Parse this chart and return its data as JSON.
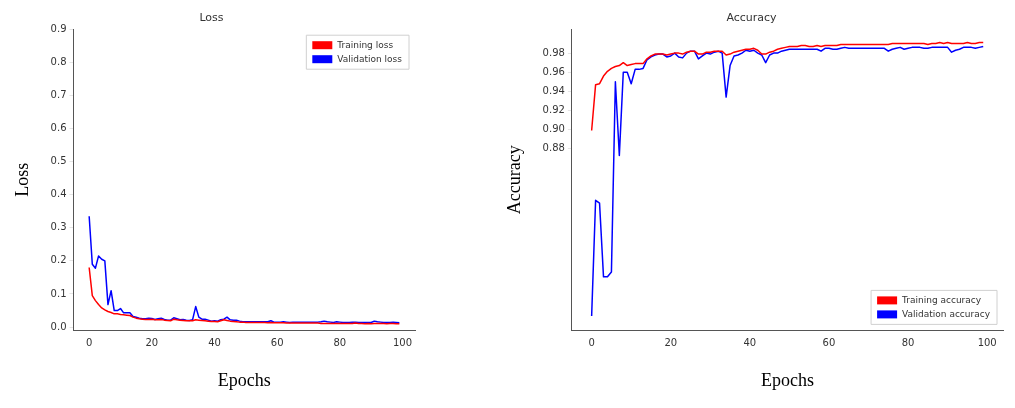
{
  "chart_data": [
    {
      "type": "line",
      "title": "Loss",
      "xlabel": "Epochs",
      "ylabel": "Loss",
      "legend": "top right",
      "x": [
        0,
        1,
        2,
        3,
        4,
        5,
        6,
        7,
        8,
        9,
        10,
        11,
        12,
        13,
        14,
        15,
        16,
        17,
        18,
        19,
        20,
        21,
        22,
        23,
        24,
        25,
        26,
        27,
        28,
        29,
        30,
        31,
        32,
        33,
        34,
        35,
        36,
        37,
        38,
        39,
        40,
        41,
        42,
        43,
        44,
        45,
        46,
        47,
        48,
        49,
        50,
        51,
        52,
        53,
        54,
        55,
        56,
        57,
        58,
        59,
        60,
        61,
        62,
        63,
        64,
        65,
        66,
        67,
        68,
        69,
        70,
        71,
        72,
        73,
        74,
        75,
        76,
        77,
        78,
        79,
        80,
        81,
        82,
        83,
        84,
        85,
        86,
        87,
        88,
        89,
        90,
        91,
        92,
        93,
        94,
        95,
        96,
        97,
        98,
        99
      ],
      "xlim": [
        -5,
        104
      ],
      "xticks": [
        0,
        20,
        40,
        60,
        80,
        100
      ],
      "ylim": [
        -0.01,
        0.9
      ],
      "yticks": [
        {
          "value": 0,
          "label": "0.0"
        },
        0.1,
        0.2,
        0.3,
        0.4,
        0.5,
        0.6,
        0.7,
        0.8,
        0.9
      ],
      "series": [
        {
          "name": "Training loss",
          "color": "#ff0000",
          "values": [
            0.18,
            0.095,
            0.08,
            0.068,
            0.058,
            0.052,
            0.047,
            0.044,
            0.04,
            0.04,
            0.038,
            0.037,
            0.036,
            0.035,
            0.03,
            0.027,
            0.025,
            0.024,
            0.023,
            0.023,
            0.024,
            0.022,
            0.022,
            0.023,
            0.021,
            0.02,
            0.019,
            0.024,
            0.022,
            0.021,
            0.02,
            0.019,
            0.019,
            0.019,
            0.022,
            0.021,
            0.02,
            0.019,
            0.018,
            0.017,
            0.017,
            0.016,
            0.019,
            0.022,
            0.02,
            0.018,
            0.017,
            0.016,
            0.015,
            0.015,
            0.014,
            0.014,
            0.014,
            0.014,
            0.014,
            0.014,
            0.014,
            0.013,
            0.014,
            0.013,
            0.013,
            0.013,
            0.013,
            0.012,
            0.012,
            0.012,
            0.012,
            0.012,
            0.012,
            0.012,
            0.012,
            0.012,
            0.012,
            0.012,
            0.011,
            0.011,
            0.011,
            0.011,
            0.011,
            0.011,
            0.011,
            0.011,
            0.011,
            0.011,
            0.011,
            0.012,
            0.011,
            0.011,
            0.01,
            0.011,
            0.01,
            0.011,
            0.011,
            0.011,
            0.011,
            0.01,
            0.011,
            0.011,
            0.01,
            0.01
          ]
        },
        {
          "name": "Validation loss",
          "color": "#0000ff",
          "values": [
            0.335,
            0.19,
            0.178,
            0.215,
            0.205,
            0.2,
            0.068,
            0.11,
            0.05,
            0.05,
            0.056,
            0.043,
            0.043,
            0.043,
            0.032,
            0.03,
            0.027,
            0.025,
            0.025,
            0.027,
            0.026,
            0.023,
            0.025,
            0.027,
            0.023,
            0.021,
            0.021,
            0.028,
            0.025,
            0.022,
            0.023,
            0.021,
            0.02,
            0.022,
            0.062,
            0.03,
            0.024,
            0.024,
            0.021,
            0.018,
            0.019,
            0.018,
            0.022,
            0.024,
            0.03,
            0.022,
            0.021,
            0.021,
            0.018,
            0.016,
            0.016,
            0.016,
            0.016,
            0.016,
            0.016,
            0.016,
            0.016,
            0.016,
            0.019,
            0.015,
            0.015,
            0.015,
            0.016,
            0.015,
            0.014,
            0.015,
            0.015,
            0.015,
            0.015,
            0.015,
            0.015,
            0.015,
            0.015,
            0.015,
            0.016,
            0.018,
            0.016,
            0.015,
            0.014,
            0.016,
            0.015,
            0.014,
            0.014,
            0.014,
            0.015,
            0.015,
            0.014,
            0.014,
            0.014,
            0.014,
            0.014,
            0.018,
            0.016,
            0.015,
            0.014,
            0.014,
            0.014,
            0.015,
            0.014,
            0.013
          ]
        }
      ]
    },
    {
      "type": "line",
      "title": "Accuracy",
      "xlabel": "Epochs",
      "ylabel": "Accuracy",
      "legend": "bottom right",
      "x": [
        0,
        1,
        2,
        3,
        4,
        5,
        6,
        7,
        8,
        9,
        10,
        11,
        12,
        13,
        14,
        15,
        16,
        17,
        18,
        19,
        20,
        21,
        22,
        23,
        24,
        25,
        26,
        27,
        28,
        29,
        30,
        31,
        32,
        33,
        34,
        35,
        36,
        37,
        38,
        39,
        40,
        41,
        42,
        43,
        44,
        45,
        46,
        47,
        48,
        49,
        50,
        51,
        52,
        53,
        54,
        55,
        56,
        57,
        58,
        59,
        60,
        61,
        62,
        63,
        64,
        65,
        66,
        67,
        68,
        69,
        70,
        71,
        72,
        73,
        74,
        75,
        76,
        77,
        78,
        79,
        80,
        81,
        82,
        83,
        84,
        85,
        86,
        87,
        88,
        89,
        90,
        91,
        92,
        93,
        94,
        95,
        96,
        97,
        98,
        99
      ],
      "xlim": [
        -5,
        104
      ],
      "xticks": [
        0,
        20,
        40,
        60,
        80,
        100
      ],
      "ylim": [
        0.69,
        1.005
      ],
      "yticks": [
        0.88,
        {
          "value": 0.9,
          "label": "0.90"
        },
        0.92,
        0.94,
        0.96,
        0.98
      ],
      "series": [
        {
          "name": "Training accuracy",
          "color": "#ff0000",
          "values": [
            0.899,
            0.947,
            0.948,
            0.956,
            0.961,
            0.964,
            0.966,
            0.967,
            0.97,
            0.967,
            0.968,
            0.969,
            0.969,
            0.969,
            0.974,
            0.977,
            0.979,
            0.979,
            0.979,
            0.978,
            0.979,
            0.98,
            0.98,
            0.979,
            0.981,
            0.982,
            0.982,
            0.979,
            0.979,
            0.981,
            0.981,
            0.982,
            0.982,
            0.982,
            0.978,
            0.979,
            0.981,
            0.982,
            0.983,
            0.984,
            0.984,
            0.985,
            0.983,
            0.979,
            0.979,
            0.981,
            0.982,
            0.984,
            0.985,
            0.986,
            0.987,
            0.987,
            0.987,
            0.988,
            0.988,
            0.987,
            0.987,
            0.988,
            0.987,
            0.988,
            0.988,
            0.988,
            0.988,
            0.989,
            0.989,
            0.989,
            0.989,
            0.989,
            0.989,
            0.989,
            0.989,
            0.989,
            0.989,
            0.989,
            0.989,
            0.989,
            0.99,
            0.99,
            0.99,
            0.99,
            0.99,
            0.99,
            0.99,
            0.99,
            0.99,
            0.989,
            0.99,
            0.99,
            0.991,
            0.99,
            0.991,
            0.99,
            0.99,
            0.99,
            0.99,
            0.991,
            0.99,
            0.99,
            0.991,
            0.991
          ]
        },
        {
          "name": "Validation accuracy",
          "color": "#0000ff",
          "values": [
            0.705,
            0.826,
            0.823,
            0.746,
            0.746,
            0.751,
            0.95,
            0.873,
            0.96,
            0.96,
            0.948,
            0.963,
            0.963,
            0.964,
            0.973,
            0.976,
            0.978,
            0.979,
            0.979,
            0.976,
            0.977,
            0.98,
            0.976,
            0.975,
            0.98,
            0.982,
            0.982,
            0.974,
            0.977,
            0.98,
            0.979,
            0.981,
            0.982,
            0.98,
            0.934,
            0.967,
            0.977,
            0.978,
            0.98,
            0.983,
            0.982,
            0.983,
            0.98,
            0.978,
            0.97,
            0.978,
            0.98,
            0.98,
            0.982,
            0.983,
            0.984,
            0.984,
            0.984,
            0.984,
            0.984,
            0.984,
            0.984,
            0.984,
            0.982,
            0.985,
            0.985,
            0.984,
            0.984,
            0.985,
            0.986,
            0.985,
            0.985,
            0.985,
            0.985,
            0.985,
            0.985,
            0.985,
            0.985,
            0.985,
            0.985,
            0.982,
            0.984,
            0.985,
            0.986,
            0.984,
            0.985,
            0.986,
            0.986,
            0.986,
            0.985,
            0.985,
            0.986,
            0.986,
            0.986,
            0.986,
            0.986,
            0.981,
            0.983,
            0.984,
            0.986,
            0.986,
            0.986,
            0.985,
            0.986,
            0.987
          ]
        }
      ]
    }
  ]
}
